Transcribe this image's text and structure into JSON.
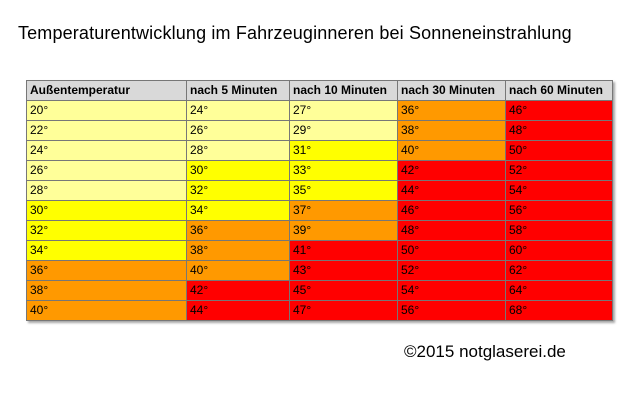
{
  "title": "Temperaturentwicklung im Fahrzeuginneren bei Sonneneinstrahlung",
  "table": {
    "headers": [
      "Außentemperatur",
      "nach 5 Minuten",
      "nach 10 Minuten",
      "nach 30 Minuten",
      "nach 60 Minuten"
    ],
    "rows": [
      [
        "20°",
        "24°",
        "27°",
        "36°",
        "46°"
      ],
      [
        "22°",
        "26°",
        "29°",
        "38°",
        "48°"
      ],
      [
        "24°",
        "28°",
        "31°",
        "40°",
        "50°"
      ],
      [
        "26°",
        "30°",
        "33°",
        "42°",
        "52°"
      ],
      [
        "28°",
        "32°",
        "35°",
        "44°",
        "54°"
      ],
      [
        "30°",
        "34°",
        "37°",
        "46°",
        "56°"
      ],
      [
        "32°",
        "36°",
        "39°",
        "48°",
        "58°"
      ],
      [
        "34°",
        "38°",
        "41°",
        "50°",
        "60°"
      ],
      [
        "36°",
        "40°",
        "43°",
        "52°",
        "62°"
      ],
      [
        "38°",
        "42°",
        "45°",
        "54°",
        "64°"
      ],
      [
        "40°",
        "44°",
        "47°",
        "56°",
        "68°"
      ]
    ]
  },
  "colors": {
    "header_bg": "#d9d9d9",
    "light_yellow": "#ffff99",
    "yellow": "#ffff00",
    "orange": "#ff9900",
    "red": "#ff0000"
  },
  "footer": "©2015 notglaserei.de"
}
